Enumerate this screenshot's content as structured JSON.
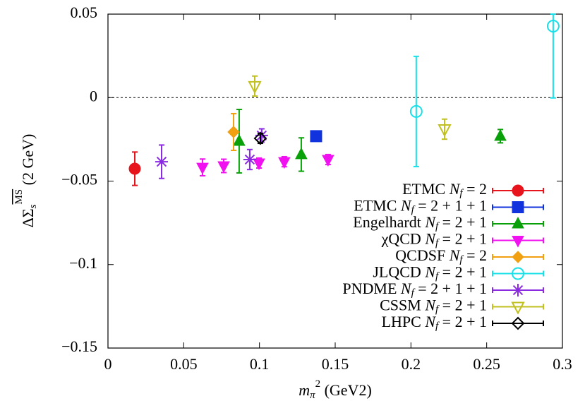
{
  "chart_data": {
    "type": "scatter",
    "x_label": "mπ2 (GeV2)",
    "y_label": "ΔΣsMS (2 GeV)",
    "xlim": [
      0,
      0.3
    ],
    "ylim": [
      -0.15,
      0.05
    ],
    "xticks": [
      0,
      0.05,
      0.1,
      0.15,
      0.2,
      0.25,
      0.3
    ],
    "yticks": [
      {
        "value": -0.15,
        "label": "−0.15"
      },
      {
        "value": -0.1,
        "label": "−0.1"
      },
      {
        "value": -0.05,
        "label": "−0.05"
      },
      0,
      0.05
    ],
    "zero_line": true,
    "legend": "lower right",
    "series": [
      {
        "name": "ETMC Nf = 2",
        "color": "#e8141c",
        "marker": "circle",
        "x": [
          0.0177
        ],
        "values": [
          -0.0426
        ],
        "errors": [
          0.01
        ]
      },
      {
        "name": "ETMC Nf = 2 + 1 + 1",
        "color": "#1133dd",
        "marker": "square",
        "x": [
          0.1374
        ],
        "values": [
          -0.0231
        ],
        "errors": [
          0.002
        ]
      },
      {
        "name": "Engelhardt Nf = 2 + 1",
        "color": "#0aa00a",
        "marker": "triangle",
        "x": [
          0.0866,
          0.1276,
          0.259
        ],
        "values": [
          -0.0261,
          -0.0341,
          -0.0231
        ],
        "errors": [
          0.019,
          0.01,
          0.004
        ]
      },
      {
        "name": "χQCD Nf = 2 + 1",
        "color": "#f010f0",
        "marker": "triangle-down",
        "x": [
          0.0624,
          0.0764,
          0.0997,
          0.1164,
          0.1453
        ],
        "values": [
          -0.0418,
          -0.0409,
          -0.0392,
          -0.0384,
          -0.0371
        ],
        "errors": [
          0.005,
          0.004,
          0.003,
          0.003,
          0.003
        ]
      },
      {
        "name": "QCDSF Nf = 2",
        "color": "#f0a010",
        "marker": "diamond",
        "x": [
          0.0829
        ],
        "values": [
          -0.0206
        ],
        "errors": [
          0.011
        ]
      },
      {
        "name": "JLQCD Nf = 2 + 1",
        "color": "#18e0e8",
        "marker": "circle-open",
        "x": [
          0.2035,
          0.2939
        ],
        "values": [
          -0.0083,
          0.0428
        ],
        "errors": [
          0.033,
          0.043
        ]
      },
      {
        "name": "PNDME Nf = 2 + 1 + 1",
        "color": "#8a2be2",
        "marker": "asterisk",
        "x": [
          0.0354,
          0.0936,
          0.1015
        ],
        "values": [
          -0.0384,
          -0.0371,
          -0.0227
        ],
        "errors": [
          0.01,
          0.006,
          0.004
        ]
      },
      {
        "name": "CSSM Nf = 2 + 1",
        "color": "#c0c020",
        "marker": "triangle-down-open",
        "x": [
          0.0969,
          0.2222
        ],
        "values": [
          0.0069,
          -0.0189
        ],
        "errors": [
          0.006,
          0.006
        ]
      },
      {
        "name": "LHPC Nf = 2 + 1",
        "color": "#000000",
        "marker": "diamond-open",
        "x": [
          0.1006
        ],
        "values": [
          -0.0244
        ],
        "errors": [
          0.003
        ]
      }
    ]
  }
}
